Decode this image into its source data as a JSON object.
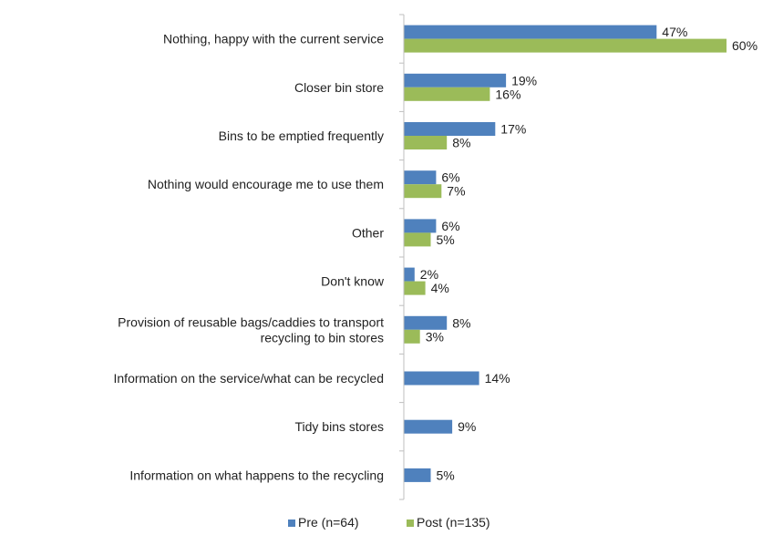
{
  "chart_data": {
    "type": "bar",
    "orientation": "horizontal",
    "categories": [
      [
        "Nothing, happy with the current service"
      ],
      [
        "Closer bin store"
      ],
      [
        "Bins to be emptied frequently"
      ],
      [
        "Nothing would encourage me to use them"
      ],
      [
        "Other"
      ],
      [
        "Don't know"
      ],
      [
        "Provision of reusable bags/caddies to transport",
        "recycling to bin stores"
      ],
      [
        "Information on the service/what can be recycled"
      ],
      [
        "Tidy bins stores"
      ],
      [
        "Information on what happens to the recycling"
      ]
    ],
    "series": [
      {
        "name": "Pre (n=64)",
        "color": "#4f81bd",
        "values": [
          47,
          19,
          17,
          6,
          6,
          2,
          8,
          14,
          9,
          5
        ],
        "labels": [
          "47%",
          "19%",
          "17%",
          "6%",
          "6%",
          "2%",
          "8%",
          "14%",
          "9%",
          "5%"
        ]
      },
      {
        "name": "Post (n=135)",
        "color": "#9bbb59",
        "values": [
          60,
          16,
          8,
          7,
          5,
          4,
          3,
          null,
          null,
          null
        ],
        "labels": [
          "60%",
          "16%",
          "8%",
          "7%",
          "5%",
          "4%",
          "3%",
          null,
          null,
          null
        ]
      }
    ],
    "xlim": [
      0,
      60
    ],
    "grid": false,
    "legend_position": "bottom"
  }
}
